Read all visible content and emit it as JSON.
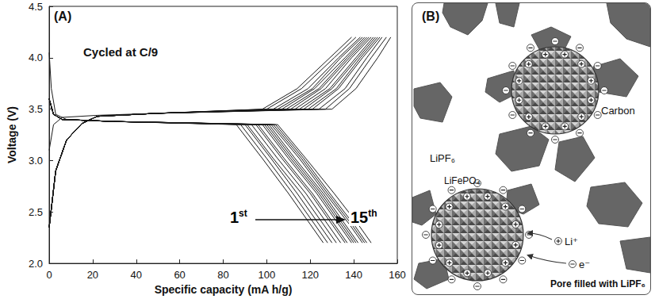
{
  "chart_data": {
    "type": "line",
    "annotations": [
      "(A)",
      "Cycled at C/9",
      "1st",
      "15th"
    ],
    "x_label": "Specific capacity (mA h/g)",
    "y_label": "Voltage (V)",
    "xlim": [
      0,
      160
    ],
    "xticks": [
      0,
      20,
      40,
      60,
      80,
      100,
      120,
      140,
      160
    ],
    "ylim": [
      2,
      4.5
    ],
    "yticks": [
      {
        "value": 2,
        "label": "2.0"
      },
      2.5,
      {
        "value": 3,
        "label": "3.0"
      },
      3.5,
      {
        "value": 4,
        "label": "4.0"
      },
      4.5
    ],
    "grid": false,
    "color": "#1a1a1a",
    "series": [
      {
        "values": [
          [
            0,
            3.1
          ],
          [
            2,
            3.35
          ],
          [
            6,
            3.42
          ],
          [
            22,
            3.44
          ],
          [
            50,
            3.46
          ],
          [
            98,
            3.5
          ],
          [
            114,
            3.7
          ],
          [
            129,
            4.0
          ],
          [
            139,
            4.2
          ]
        ]
      },
      {
        "values": [
          [
            0,
            4.05
          ],
          [
            1,
            3.7
          ],
          [
            3,
            3.45
          ],
          [
            8,
            3.4
          ],
          [
            30,
            3.38
          ],
          [
            86,
            3.35
          ],
          [
            98,
            3.02
          ],
          [
            110,
            2.68
          ],
          [
            120,
            2.38
          ],
          [
            126,
            2.2
          ]
        ]
      },
      {
        "values": [
          [
            0,
            2.35
          ],
          [
            3,
            2.9
          ],
          [
            8,
            3.2
          ],
          [
            15,
            3.36
          ],
          [
            22,
            3.43
          ],
          [
            50,
            3.46
          ],
          [
            100,
            3.5
          ],
          [
            116,
            3.7
          ],
          [
            131,
            4.0
          ],
          [
            141,
            4.2
          ]
        ]
      },
      {
        "values": [
          [
            0,
            3.6
          ],
          [
            2,
            3.45
          ],
          [
            6,
            3.4
          ],
          [
            30,
            3.38
          ],
          [
            88,
            3.35
          ],
          [
            100,
            3.02
          ],
          [
            112,
            2.68
          ],
          [
            122,
            2.38
          ],
          [
            128,
            2.2
          ]
        ]
      },
      {
        "values": [
          [
            0,
            2.35
          ],
          [
            3,
            2.9
          ],
          [
            8,
            3.2
          ],
          [
            15,
            3.36
          ],
          [
            22,
            3.43
          ],
          [
            50,
            3.46
          ],
          [
            103,
            3.5
          ],
          [
            119,
            3.7
          ],
          [
            133,
            4.0
          ],
          [
            143,
            4.2
          ]
        ]
      },
      {
        "values": [
          [
            0,
            3.6
          ],
          [
            2,
            3.45
          ],
          [
            6,
            3.4
          ],
          [
            30,
            3.38
          ],
          [
            90,
            3.35
          ],
          [
            102,
            3.02
          ],
          [
            114,
            2.68
          ],
          [
            124,
            2.38
          ],
          [
            130,
            2.2
          ]
        ]
      },
      {
        "values": [
          [
            0,
            2.35
          ],
          [
            3,
            2.9
          ],
          [
            8,
            3.2
          ],
          [
            15,
            3.36
          ],
          [
            22,
            3.43
          ],
          [
            50,
            3.46
          ],
          [
            105,
            3.5
          ],
          [
            121,
            3.7
          ],
          [
            134,
            4.0
          ],
          [
            144,
            4.2
          ]
        ]
      },
      {
        "values": [
          [
            0,
            3.6
          ],
          [
            2,
            3.45
          ],
          [
            6,
            3.4
          ],
          [
            30,
            3.38
          ],
          [
            91,
            3.35
          ],
          [
            103,
            3.02
          ],
          [
            116,
            2.68
          ],
          [
            126,
            2.38
          ],
          [
            132,
            2.2
          ]
        ]
      },
      {
        "values": [
          [
            0,
            2.35
          ],
          [
            3,
            2.9
          ],
          [
            8,
            3.2
          ],
          [
            15,
            3.36
          ],
          [
            22,
            3.43
          ],
          [
            50,
            3.46
          ],
          [
            107,
            3.5
          ],
          [
            122,
            3.7
          ],
          [
            136,
            4.0
          ],
          [
            145,
            4.2
          ]
        ]
      },
      {
        "values": [
          [
            0,
            3.6
          ],
          [
            2,
            3.45
          ],
          [
            6,
            3.4
          ],
          [
            30,
            3.38
          ],
          [
            93,
            3.35
          ],
          [
            105,
            3.02
          ],
          [
            118,
            2.68
          ],
          [
            128,
            2.38
          ],
          [
            134,
            2.2
          ]
        ]
      },
      {
        "values": [
          [
            0,
            2.35
          ],
          [
            3,
            2.9
          ],
          [
            8,
            3.2
          ],
          [
            15,
            3.36
          ],
          [
            22,
            3.43
          ],
          [
            50,
            3.46
          ],
          [
            109,
            3.5
          ],
          [
            124,
            3.7
          ],
          [
            137,
            4.0
          ],
          [
            146,
            4.2
          ]
        ]
      },
      {
        "values": [
          [
            0,
            3.6
          ],
          [
            2,
            3.45
          ],
          [
            6,
            3.4
          ],
          [
            30,
            3.38
          ],
          [
            95,
            3.35
          ],
          [
            107,
            3.02
          ],
          [
            120,
            2.68
          ],
          [
            130,
            2.38
          ],
          [
            136,
            2.2
          ]
        ]
      },
      {
        "values": [
          [
            0,
            2.35
          ],
          [
            3,
            2.9
          ],
          [
            8,
            3.2
          ],
          [
            15,
            3.36
          ],
          [
            22,
            3.43
          ],
          [
            50,
            3.46
          ],
          [
            111,
            3.5
          ],
          [
            125,
            3.7
          ],
          [
            138,
            4.0
          ],
          [
            147,
            4.2
          ]
        ]
      },
      {
        "values": [
          [
            0,
            3.6
          ],
          [
            2,
            3.45
          ],
          [
            6,
            3.4
          ],
          [
            30,
            3.38
          ],
          [
            96,
            3.35
          ],
          [
            108,
            3.02
          ],
          [
            121,
            2.68
          ],
          [
            131,
            2.38
          ],
          [
            137,
            2.2
          ]
        ]
      },
      {
        "values": [
          [
            0,
            2.35
          ],
          [
            3,
            2.9
          ],
          [
            8,
            3.2
          ],
          [
            15,
            3.36
          ],
          [
            22,
            3.43
          ],
          [
            50,
            3.46
          ],
          [
            113,
            3.5
          ],
          [
            127,
            3.7
          ],
          [
            139,
            4.0
          ],
          [
            148,
            4.2
          ]
        ]
      },
      {
        "values": [
          [
            0,
            3.6
          ],
          [
            2,
            3.45
          ],
          [
            6,
            3.4
          ],
          [
            30,
            3.38
          ],
          [
            98,
            3.35
          ],
          [
            110,
            3.02
          ],
          [
            123,
            2.68
          ],
          [
            133,
            2.38
          ],
          [
            139,
            2.2
          ]
        ]
      },
      {
        "values": [
          [
            0,
            2.35
          ],
          [
            3,
            2.9
          ],
          [
            8,
            3.2
          ],
          [
            15,
            3.36
          ],
          [
            22,
            3.43
          ],
          [
            50,
            3.46
          ],
          [
            115,
            3.5
          ],
          [
            129,
            3.7
          ],
          [
            141,
            4.0
          ],
          [
            149,
            4.2
          ]
        ]
      },
      {
        "values": [
          [
            0,
            3.6
          ],
          [
            2,
            3.45
          ],
          [
            6,
            3.4
          ],
          [
            30,
            3.38
          ],
          [
            99,
            3.35
          ],
          [
            111,
            3.02
          ],
          [
            124,
            2.68
          ],
          [
            134,
            2.38
          ],
          [
            140,
            2.2
          ]
        ]
      },
      {
        "values": [
          [
            0,
            2.35
          ],
          [
            3,
            2.9
          ],
          [
            8,
            3.2
          ],
          [
            15,
            3.36
          ],
          [
            22,
            3.43
          ],
          [
            50,
            3.46
          ],
          [
            117,
            3.5
          ],
          [
            130,
            3.7
          ],
          [
            142,
            4.0
          ],
          [
            150,
            4.2
          ]
        ]
      },
      {
        "values": [
          [
            0,
            3.6
          ],
          [
            2,
            3.45
          ],
          [
            6,
            3.4
          ],
          [
            30,
            3.38
          ],
          [
            100,
            3.35
          ],
          [
            112,
            3.02
          ],
          [
            125,
            2.68
          ],
          [
            135,
            2.38
          ],
          [
            141,
            2.2
          ]
        ]
      },
      {
        "values": [
          [
            0,
            2.35
          ],
          [
            3,
            2.9
          ],
          [
            8,
            3.2
          ],
          [
            15,
            3.36
          ],
          [
            22,
            3.43
          ],
          [
            50,
            3.46
          ],
          [
            119,
            3.5
          ],
          [
            132,
            3.7
          ],
          [
            143,
            4.0
          ],
          [
            151,
            4.2
          ]
        ]
      },
      {
        "values": [
          [
            0,
            3.6
          ],
          [
            2,
            3.45
          ],
          [
            6,
            3.4
          ],
          [
            30,
            3.38
          ],
          [
            101,
            3.35
          ],
          [
            113,
            3.02
          ],
          [
            126,
            2.68
          ],
          [
            136,
            2.38
          ],
          [
            142,
            2.2
          ]
        ]
      },
      {
        "values": [
          [
            0,
            2.35
          ],
          [
            3,
            2.9
          ],
          [
            8,
            3.2
          ],
          [
            15,
            3.36
          ],
          [
            22,
            3.43
          ],
          [
            50,
            3.46
          ],
          [
            121,
            3.5
          ],
          [
            133,
            3.7
          ],
          [
            144,
            4.0
          ],
          [
            152,
            4.2
          ]
        ]
      },
      {
        "values": [
          [
            0,
            3.6
          ],
          [
            2,
            3.45
          ],
          [
            6,
            3.4
          ],
          [
            30,
            3.38
          ],
          [
            102,
            3.35
          ],
          [
            115,
            3.02
          ],
          [
            127,
            2.68
          ],
          [
            138,
            2.38
          ],
          [
            144,
            2.2
          ]
        ]
      },
      {
        "values": [
          [
            0,
            2.35
          ],
          [
            3,
            2.9
          ],
          [
            8,
            3.2
          ],
          [
            15,
            3.36
          ],
          [
            22,
            3.43
          ],
          [
            50,
            3.46
          ],
          [
            124,
            3.5
          ],
          [
            136,
            3.7
          ],
          [
            146,
            4.0
          ],
          [
            153,
            4.2
          ]
        ]
      },
      {
        "values": [
          [
            0,
            3.6
          ],
          [
            2,
            3.45
          ],
          [
            6,
            3.4
          ],
          [
            30,
            3.38
          ],
          [
            103,
            3.35
          ],
          [
            116,
            3.02
          ],
          [
            128,
            2.68
          ],
          [
            139,
            2.38
          ],
          [
            145,
            2.2
          ]
        ]
      },
      {
        "values": [
          [
            0,
            2.35
          ],
          [
            3,
            2.9
          ],
          [
            8,
            3.2
          ],
          [
            15,
            3.36
          ],
          [
            22,
            3.43
          ],
          [
            50,
            3.46
          ],
          [
            127,
            3.5
          ],
          [
            138,
            3.7
          ],
          [
            148,
            4.0
          ],
          [
            155,
            4.2
          ]
        ]
      },
      {
        "values": [
          [
            0,
            3.6
          ],
          [
            2,
            3.45
          ],
          [
            6,
            3.4
          ],
          [
            30,
            3.38
          ],
          [
            104,
            3.35
          ],
          [
            117,
            3.02
          ],
          [
            129,
            2.68
          ],
          [
            140,
            2.38
          ],
          [
            146,
            2.2
          ]
        ]
      },
      {
        "values": [
          [
            0,
            2.35
          ],
          [
            3,
            2.9
          ],
          [
            8,
            3.2
          ],
          [
            15,
            3.36
          ],
          [
            22,
            3.43
          ],
          [
            50,
            3.46
          ],
          [
            130,
            3.5
          ],
          [
            141,
            3.7
          ],
          [
            151,
            4.0
          ],
          [
            157,
            4.2
          ]
        ]
      },
      {
        "values": [
          [
            0,
            3.6
          ],
          [
            2,
            3.45
          ],
          [
            6,
            3.4
          ],
          [
            30,
            3.38
          ],
          [
            105,
            3.35
          ],
          [
            118,
            3.02
          ],
          [
            131,
            2.68
          ],
          [
            142,
            2.38
          ],
          [
            148,
            2.2
          ]
        ]
      }
    ]
  },
  "diagram": {
    "panel_label": "(B)",
    "labels": {
      "electrolyte": "LiPF₆",
      "carbon": "Carbon",
      "active": "LiFePO₄",
      "ion": "Li⁺",
      "electron": "e⁻",
      "pore": "Pore filled with LiPF₆"
    }
  }
}
